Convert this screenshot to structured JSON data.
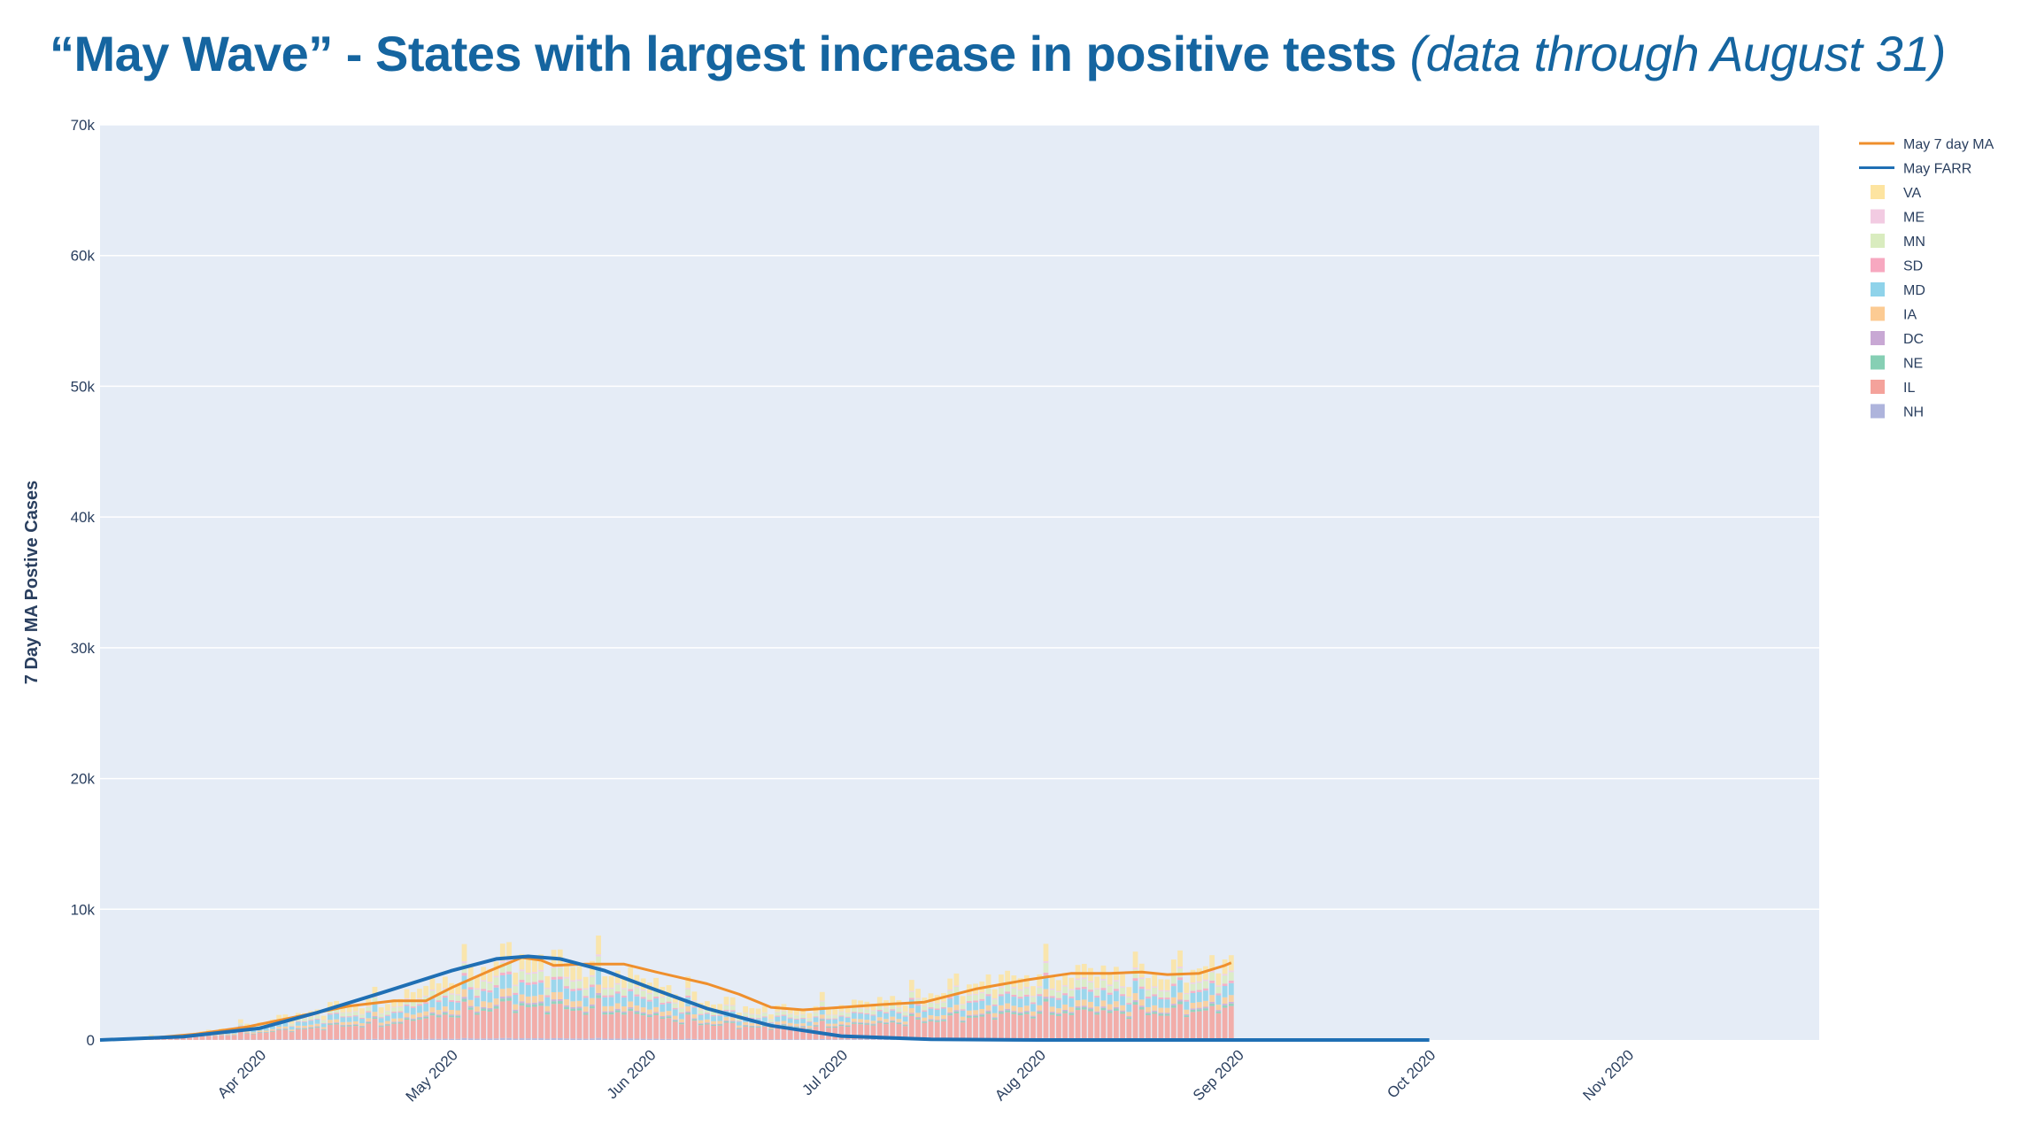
{
  "title": {
    "main": "“May Wave” - States with largest increase in positive tests",
    "sub": "(data through August 31)"
  },
  "chart_data": {
    "type": "bar",
    "barmode": "stack",
    "ylabel": "7 Day MA Postive Cases",
    "ylim": [
      0,
      70000
    ],
    "yticks": [
      {
        "value": 0,
        "label": "0"
      },
      {
        "value": 10000,
        "label": "10k"
      },
      {
        "value": 20000,
        "label": "20k"
      },
      {
        "value": 30000,
        "label": "30k"
      },
      {
        "value": 40000,
        "label": "40k"
      },
      {
        "value": 50000,
        "label": "50k"
      },
      {
        "value": 60000,
        "label": "60k"
      },
      {
        "value": 70000,
        "label": "70k"
      }
    ],
    "xlim": [
      "2020-03-07",
      "2020-12-01"
    ],
    "xticks": [
      {
        "date": "2020-04-01",
        "label": "Apr 2020"
      },
      {
        "date": "2020-05-01",
        "label": "May 2020"
      },
      {
        "date": "2020-06-01",
        "label": "Jun 2020"
      },
      {
        "date": "2020-07-01",
        "label": "Jul 2020"
      },
      {
        "date": "2020-08-01",
        "label": "Aug 2020"
      },
      {
        "date": "2020-09-01",
        "label": "Sep 2020"
      },
      {
        "date": "2020-10-01",
        "label": "Oct 2020"
      },
      {
        "date": "2020-11-01",
        "label": "Nov 2020"
      }
    ],
    "grid": true,
    "legend_position": "top-right",
    "bar_range": [
      "2020-03-08",
      "2020-08-31"
    ],
    "bar_totals_anchors": [
      [
        "2020-03-08",
        100
      ],
      [
        "2020-03-20",
        400
      ],
      [
        "2020-03-28",
        1000
      ],
      [
        "2020-04-05",
        1700
      ],
      [
        "2020-04-15",
        2700
      ],
      [
        "2020-04-22",
        3000
      ],
      [
        "2020-05-01",
        4800
      ],
      [
        "2020-05-10",
        6300
      ],
      [
        "2020-05-15",
        6000
      ],
      [
        "2020-05-25",
        5500
      ],
      [
        "2020-06-01",
        4400
      ],
      [
        "2020-06-10",
        3000
      ],
      [
        "2020-06-18",
        2300
      ],
      [
        "2020-06-25",
        2400
      ],
      [
        "2020-07-05",
        2800
      ],
      [
        "2020-07-15",
        3600
      ],
      [
        "2020-07-20",
        4100
      ],
      [
        "2020-08-01",
        5000
      ],
      [
        "2020-08-10",
        5200
      ],
      [
        "2020-08-20",
        5000
      ],
      [
        "2020-08-28",
        5600
      ],
      [
        "2020-08-31",
        5800
      ]
    ],
    "series": [
      {
        "name": "May 7 day MA",
        "kind": "line",
        "color": "#ef8f2c",
        "points": [
          [
            "2020-03-07",
            0
          ],
          [
            "2020-03-15",
            150
          ],
          [
            "2020-03-22",
            450
          ],
          [
            "2020-03-30",
            1000
          ],
          [
            "2020-04-08",
            1900
          ],
          [
            "2020-04-15",
            2600
          ],
          [
            "2020-04-22",
            3000
          ],
          [
            "2020-04-27",
            3000
          ],
          [
            "2020-05-01",
            4000
          ],
          [
            "2020-05-07",
            5300
          ],
          [
            "2020-05-12",
            6300
          ],
          [
            "2020-05-15",
            6100
          ],
          [
            "2020-05-17",
            5700
          ],
          [
            "2020-05-22",
            5800
          ],
          [
            "2020-05-28",
            5800
          ],
          [
            "2020-06-02",
            5200
          ],
          [
            "2020-06-10",
            4300
          ],
          [
            "2020-06-15",
            3500
          ],
          [
            "2020-06-20",
            2500
          ],
          [
            "2020-06-25",
            2300
          ],
          [
            "2020-07-01",
            2500
          ],
          [
            "2020-07-07",
            2700
          ],
          [
            "2020-07-14",
            2900
          ],
          [
            "2020-07-22",
            3900
          ],
          [
            "2020-07-30",
            4600
          ],
          [
            "2020-08-06",
            5100
          ],
          [
            "2020-08-12",
            5100
          ],
          [
            "2020-08-17",
            5200
          ],
          [
            "2020-08-21",
            5000
          ],
          [
            "2020-08-26",
            5100
          ],
          [
            "2020-08-30",
            5700
          ],
          [
            "2020-08-31",
            5900
          ]
        ]
      },
      {
        "name": "May FARR",
        "kind": "line",
        "color": "#1f6fb4",
        "points": [
          [
            "2020-03-07",
            0
          ],
          [
            "2020-03-20",
            250
          ],
          [
            "2020-04-01",
            900
          ],
          [
            "2020-04-10",
            2100
          ],
          [
            "2020-04-20",
            3600
          ],
          [
            "2020-05-01",
            5300
          ],
          [
            "2020-05-08",
            6200
          ],
          [
            "2020-05-13",
            6400
          ],
          [
            "2020-05-18",
            6200
          ],
          [
            "2020-05-25",
            5300
          ],
          [
            "2020-06-01",
            4000
          ],
          [
            "2020-06-10",
            2400
          ],
          [
            "2020-06-20",
            1100
          ],
          [
            "2020-07-01",
            300
          ],
          [
            "2020-07-15",
            50
          ],
          [
            "2020-08-01",
            0
          ],
          [
            "2020-10-01",
            0
          ]
        ]
      },
      {
        "name": "VA",
        "kind": "bar",
        "color": "#fde4a0",
        "share": 0.18
      },
      {
        "name": "ME",
        "kind": "bar",
        "color": "#f2cbe2",
        "share": 0.02
      },
      {
        "name": "MN",
        "kind": "bar",
        "color": "#d9ecbf",
        "share": 0.1
      },
      {
        "name": "SD",
        "kind": "bar",
        "color": "#f7a8c0",
        "share": 0.03
      },
      {
        "name": "MD",
        "kind": "bar",
        "color": "#8fd3ea",
        "share": 0.14
      },
      {
        "name": "IA",
        "kind": "bar",
        "color": "#fccb93",
        "share": 0.08
      },
      {
        "name": "DC",
        "kind": "bar",
        "color": "#c8a8d4",
        "share": 0.02
      },
      {
        "name": "NE",
        "kind": "bar",
        "color": "#86cfb4",
        "share": 0.03
      },
      {
        "name": "IL",
        "kind": "bar",
        "color": "#f4a29b",
        "share": 0.38
      },
      {
        "name": "NH",
        "kind": "bar",
        "color": "#aeb4dc",
        "share": 0.02
      }
    ]
  }
}
